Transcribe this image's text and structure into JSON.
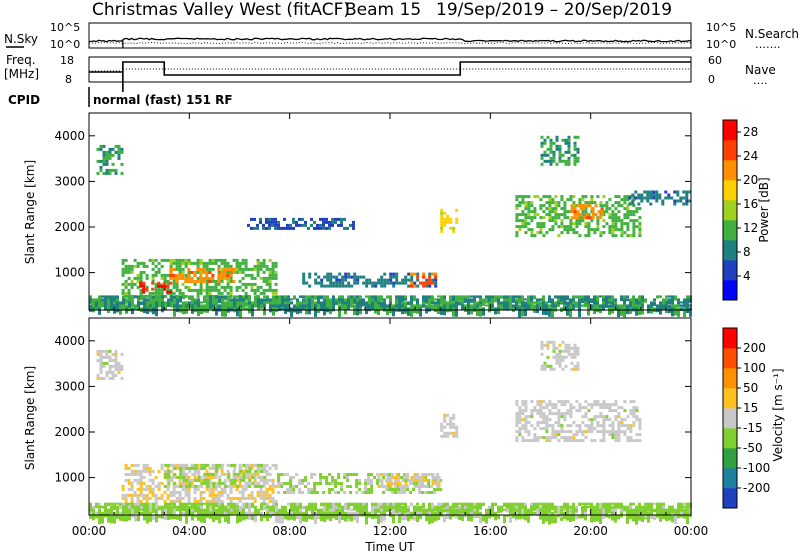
{
  "header": {
    "site": "Christmas Valley West (fitACF)",
    "beam": "Beam 15",
    "dates": "19/Sep/2019 – 20/Sep/2019"
  },
  "nsky_panel": {
    "label": "N.Sky",
    "left_ticks": [
      "10^5",
      "10^0"
    ],
    "right_ticks": [
      "10^5",
      "10^0"
    ],
    "right_label": "N.Search",
    "right_label_line": "……."
  },
  "freq_panel": {
    "label_line1": "Freq.",
    "label_line2": "[MHz]",
    "left_ticks": [
      "18",
      "8"
    ],
    "right_ticks": [
      "60",
      "0"
    ],
    "right_label": "Nave",
    "right_label_line": "…."
  },
  "cpid": {
    "label": "CPID",
    "text": "normal (fast) 151 RF"
  },
  "x_axis": {
    "ticks": [
      "00:00",
      "04:00",
      "08:00",
      "12:00",
      "16:00",
      "20:00",
      "00:00"
    ],
    "label": "Time UT"
  },
  "chart_data": [
    {
      "type": "heatmap",
      "name": "power",
      "ylabel": "Slant Range [km]",
      "ylim": [
        180,
        4500
      ],
      "yticks": [
        "1000",
        "2000",
        "3000",
        "4000"
      ],
      "xlim_hours": [
        0,
        24
      ],
      "colorbar": {
        "label": "Power [dB]",
        "ticks": [
          "4",
          "8",
          "12",
          "16",
          "20",
          "24",
          "28"
        ],
        "range": [
          0,
          30
        ],
        "colors": [
          "#0000ff",
          "#2040c0",
          "#208080",
          "#40b040",
          "#a0d020",
          "#ffd000",
          "#ff9000",
          "#ff4000",
          "#ff0000"
        ]
      },
      "regions": [
        {
          "t0": 0.3,
          "t1": 1.3,
          "r0": 3200,
          "r1": 3800,
          "value": 10
        },
        {
          "t0": 1.3,
          "t1": 7.5,
          "r0": 500,
          "r1": 1300,
          "value": 12
        },
        {
          "t0": 3.2,
          "t1": 5.8,
          "r0": 800,
          "r1": 1100,
          "value": 22
        },
        {
          "t0": 2.0,
          "t1": 3.2,
          "r0": 600,
          "r1": 800,
          "value": 26
        },
        {
          "t0": 8.5,
          "t1": 13.8,
          "r0": 700,
          "r1": 1000,
          "value": 8
        },
        {
          "t0": 12.8,
          "t1": 13.8,
          "r0": 700,
          "r1": 1000,
          "value": 24
        },
        {
          "t0": 6.3,
          "t1": 10.5,
          "r0": 2000,
          "r1": 2200,
          "value": 6
        },
        {
          "t0": 14.0,
          "t1": 14.6,
          "r0": 1900,
          "r1": 2400,
          "value": 18
        },
        {
          "t0": 17.0,
          "t1": 22.0,
          "r0": 1800,
          "r1": 2700,
          "value": 12
        },
        {
          "t0": 19.2,
          "t1": 20.5,
          "r0": 2200,
          "r1": 2500,
          "value": 22
        },
        {
          "t0": 21.5,
          "t1": 24.0,
          "r0": 2500,
          "r1": 2800,
          "value": 8
        },
        {
          "t0": 18.0,
          "t1": 19.5,
          "r0": 3400,
          "r1": 4000,
          "value": 10
        },
        {
          "t0": 0.0,
          "t1": 24.0,
          "r0": 180,
          "r1": 500,
          "value": 10
        }
      ]
    },
    {
      "type": "heatmap",
      "name": "velocity",
      "ylabel": "Slant Range [km]",
      "ylim": [
        180,
        4500
      ],
      "yticks": [
        "1000",
        "2000",
        "3000",
        "4000"
      ],
      "xlim_hours": [
        0,
        24
      ],
      "colorbar": {
        "label": "Velocity [m s⁻¹]",
        "ticks": [
          "200",
          "100",
          "50",
          "15",
          "-15",
          "-50",
          "-100",
          "-200"
        ],
        "range": [
          -250,
          250
        ],
        "colors": [
          "#2040c0",
          "#2080a0",
          "#30a040",
          "#80d030",
          "#c8c8c8",
          "#ffc020",
          "#ff9000",
          "#ff5000",
          "#ff0000"
        ]
      },
      "regions": [
        {
          "t0": 0.3,
          "t1": 1.3,
          "r0": 3200,
          "r1": 3800,
          "value": 0
        },
        {
          "t0": 1.3,
          "t1": 7.5,
          "r0": 500,
          "r1": 1300,
          "value": 25
        },
        {
          "t0": 3.0,
          "t1": 7.0,
          "r0": 800,
          "r1": 1300,
          "value": -40
        },
        {
          "t0": 7.5,
          "t1": 14.0,
          "r0": 700,
          "r1": 1100,
          "value": -30
        },
        {
          "t0": 11.5,
          "t1": 14.0,
          "r0": 800,
          "r1": 1100,
          "value": 20
        },
        {
          "t0": 14.0,
          "t1": 14.6,
          "r0": 1900,
          "r1": 2400,
          "value": 0
        },
        {
          "t0": 17.0,
          "t1": 22.0,
          "r0": 1800,
          "r1": 2700,
          "value": 0
        },
        {
          "t0": 18.0,
          "t1": 19.5,
          "r0": 3400,
          "r1": 4000,
          "value": 0
        },
        {
          "t0": 0.0,
          "t1": 24.0,
          "r0": 180,
          "r1": 450,
          "value": -45
        }
      ]
    }
  ]
}
